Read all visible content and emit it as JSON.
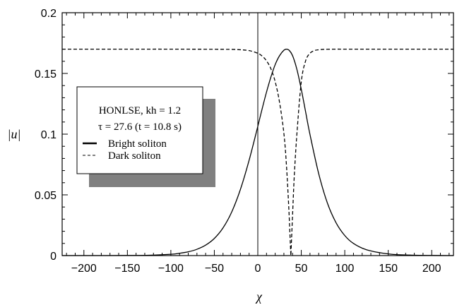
{
  "chart_data": {
    "type": "line",
    "xlabel": "χ",
    "ylabel": "|u|",
    "xlim": [
      -225,
      225
    ],
    "ylim": [
      0,
      0.2
    ],
    "x_ticks": [
      -200,
      -150,
      -100,
      -50,
      0,
      50,
      100,
      150,
      200
    ],
    "x_tick_labels": [
      "−200",
      "−150",
      "−100",
      "−50",
      "0",
      "50",
      "100",
      "150",
      "200"
    ],
    "y_ticks": [
      0,
      0.05,
      0.1,
      0.15,
      0.2
    ],
    "y_tick_labels": [
      "0",
      "0.05",
      "0.1",
      "0.15",
      "0.2"
    ],
    "grid": false,
    "legend_placement": "center-left",
    "legend_title": [
      "HONLSE, kh = 1.2",
      "τ = 27.6  (t = 10.8 s)"
    ],
    "series": [
      {
        "name": "Bright soliton",
        "style": "solid",
        "color": "#000000",
        "x": [
          -225,
          -200,
          -175,
          -150,
          -125,
          -100,
          -90,
          -80,
          -70,
          -60,
          -50,
          -40,
          -30,
          -20,
          -10,
          0,
          5,
          10,
          15,
          20,
          25,
          30,
          33,
          36,
          40,
          45,
          50,
          55,
          60,
          70,
          80,
          90,
          100,
          110,
          125,
          150,
          175,
          200,
          225
        ],
        "values": [
          0.0,
          0.0,
          0.0,
          0.0001,
          0.0003,
          0.0011,
          0.0019,
          0.0031,
          0.0052,
          0.0086,
          0.0141,
          0.0228,
          0.0359,
          0.0545,
          0.0785,
          0.1064,
          0.1209,
          0.1346,
          0.1469,
          0.1573,
          0.1646,
          0.1691,
          0.17,
          0.1691,
          0.1646,
          0.1532,
          0.1369,
          0.1183,
          0.0997,
          0.0675,
          0.0433,
          0.027,
          0.0165,
          0.01,
          0.0048,
          0.0014,
          0.0004,
          0.0001,
          0.0
        ]
      },
      {
        "name": "Dark soliton",
        "style": "dashed",
        "color": "#000000",
        "x": [
          -225,
          -150,
          -100,
          -50,
          -30,
          -20,
          -10,
          0,
          5,
          10,
          15,
          20,
          25,
          30,
          33,
          36,
          38,
          40,
          42,
          45,
          50,
          55,
          60,
          65,
          70,
          75,
          80,
          90,
          100,
          150,
          225
        ],
        "values": [
          0.17,
          0.17,
          0.17,
          0.1699,
          0.1698,
          0.1695,
          0.1688,
          0.1666,
          0.1643,
          0.1604,
          0.1539,
          0.1432,
          0.1262,
          0.1006,
          0.0736,
          0.0339,
          0.0,
          0.0339,
          0.0664,
          0.1006,
          0.1432,
          0.1604,
          0.1666,
          0.1688,
          0.1695,
          0.1698,
          0.1699,
          0.17,
          0.17,
          0.17,
          0.17
        ]
      }
    ]
  }
}
